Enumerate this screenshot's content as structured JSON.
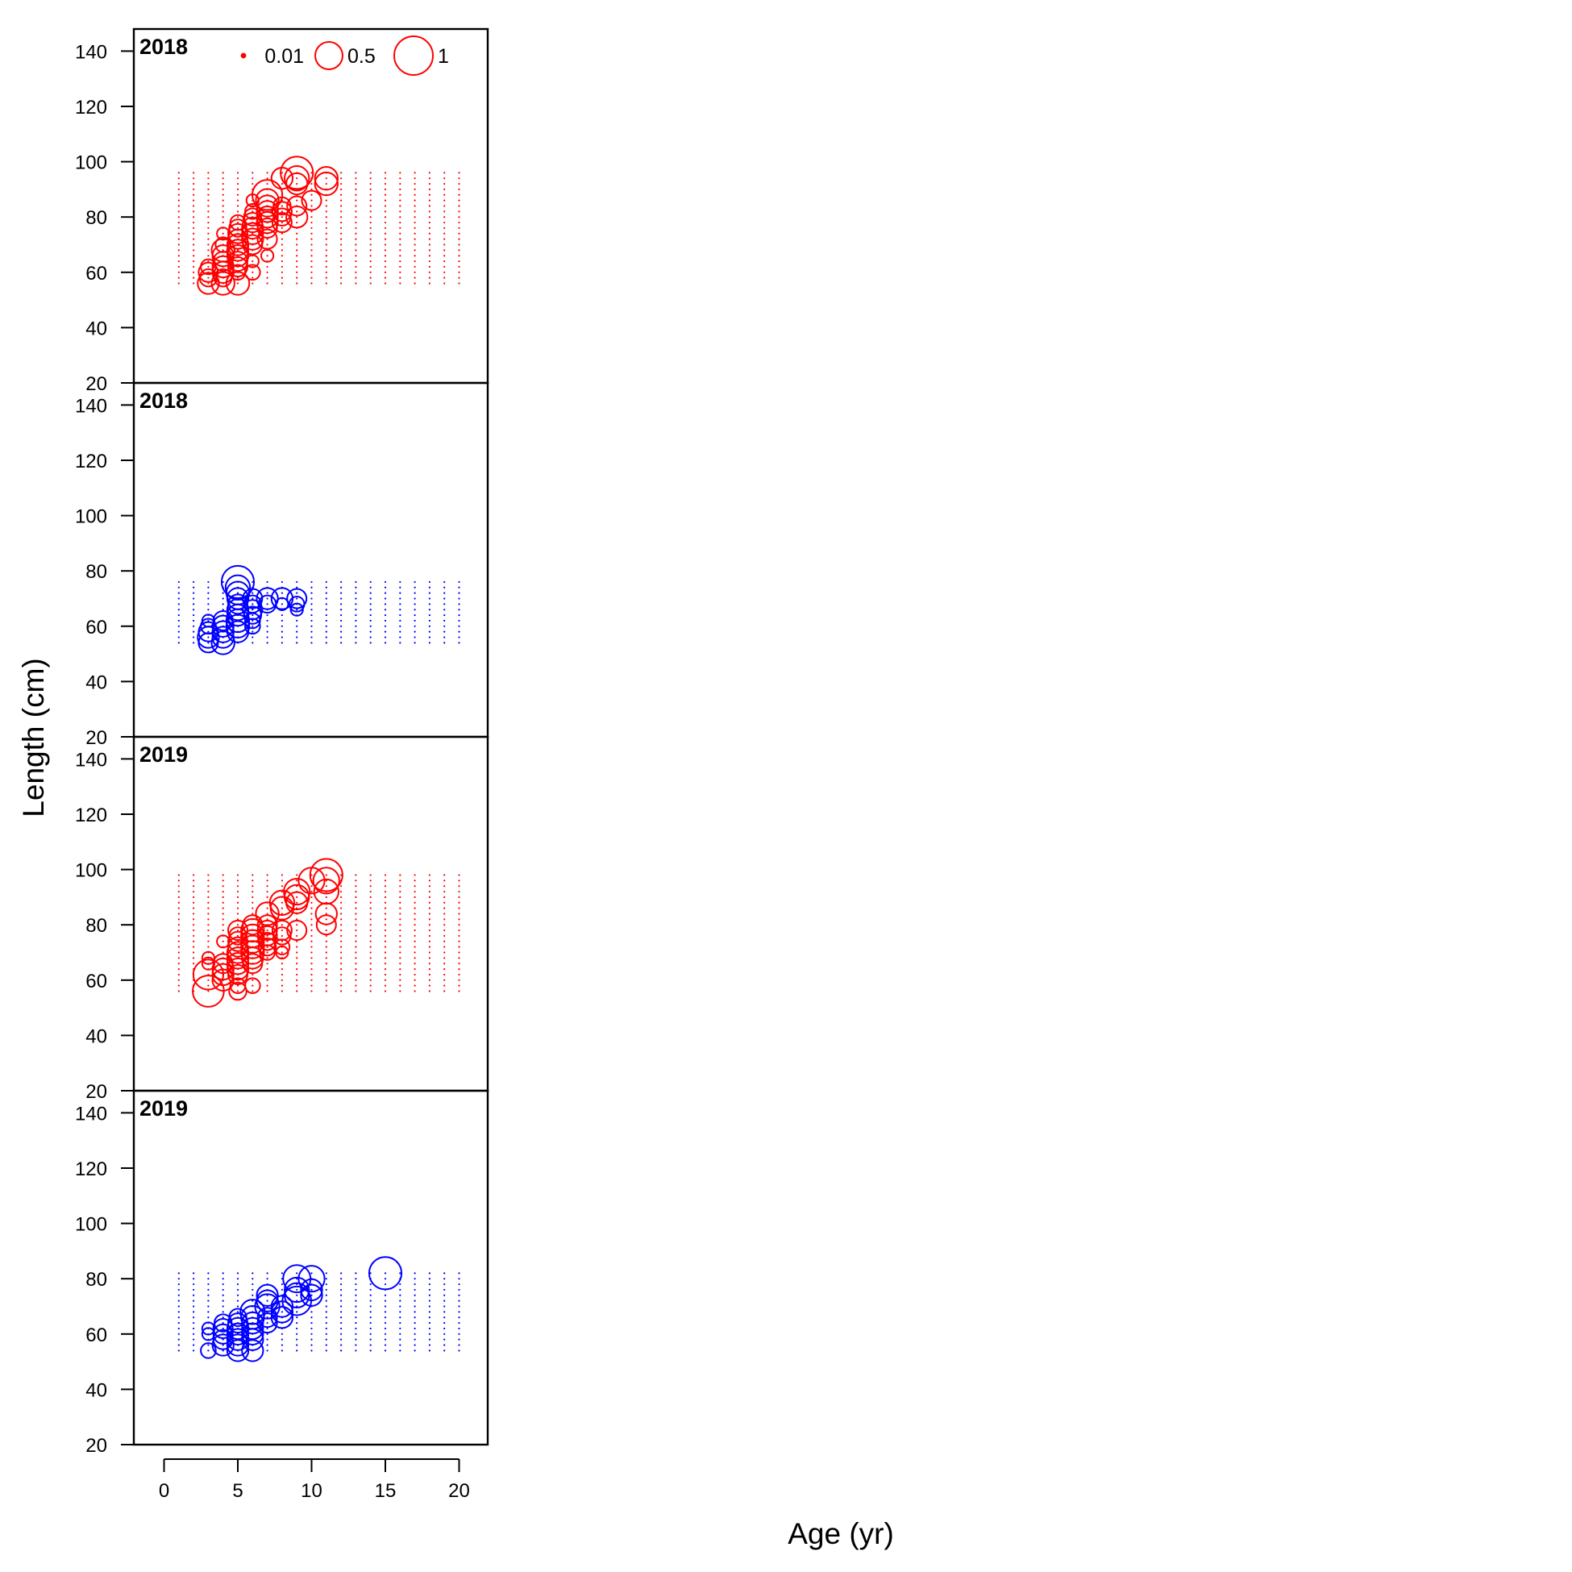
{
  "chart_data": {
    "type": "scatter",
    "subtype": "bubble",
    "xlabel": "Age (yr)",
    "ylabel": "Length (cm)",
    "xlim": [
      -2,
      22
    ],
    "ylim": [
      20,
      148
    ],
    "x_ticks": [
      0,
      5,
      10,
      15,
      20
    ],
    "y_ticks": [
      20,
      40,
      60,
      80,
      100,
      120,
      140
    ],
    "grid": false,
    "legend": {
      "placement": "top-center of first panel",
      "entries": [
        {
          "label": "0.01",
          "size": 0.01
        },
        {
          "label": "0.5",
          "size": 0.5
        },
        {
          "label": "1",
          "size": 1
        }
      ]
    },
    "colors": {
      "female": "#ff0000",
      "male": "#0000ff"
    },
    "panels": [
      {
        "label": "2018",
        "color": "#ff0000",
        "bins": {
          "age_min": 1,
          "age_max": 20,
          "len_min": 56,
          "len_max": 96,
          "len_step": 2
        },
        "points": [
          [
            3,
            56,
            0.3
          ],
          [
            3,
            58,
            0.2
          ],
          [
            3,
            60,
            0.25
          ],
          [
            3,
            62,
            0.15
          ],
          [
            4,
            56,
            0.35
          ],
          [
            4,
            58,
            0.2
          ],
          [
            4,
            60,
            0.3
          ],
          [
            4,
            62,
            0.3
          ],
          [
            4,
            64,
            0.25
          ],
          [
            4,
            66,
            0.3
          ],
          [
            4,
            68,
            0.35
          ],
          [
            4,
            70,
            0.15
          ],
          [
            4,
            74,
            0.1
          ],
          [
            5,
            56,
            0.35
          ],
          [
            5,
            60,
            0.15
          ],
          [
            5,
            62,
            0.25
          ],
          [
            5,
            64,
            0.25
          ],
          [
            5,
            66,
            0.3
          ],
          [
            5,
            68,
            0.3
          ],
          [
            5,
            70,
            0.3
          ],
          [
            5,
            72,
            0.25
          ],
          [
            5,
            74,
            0.25
          ],
          [
            5,
            76,
            0.2
          ],
          [
            5,
            78,
            0.15
          ],
          [
            6,
            60,
            0.15
          ],
          [
            6,
            64,
            0.1
          ],
          [
            6,
            70,
            0.25
          ],
          [
            6,
            72,
            0.3
          ],
          [
            6,
            74,
            0.3
          ],
          [
            6,
            76,
            0.3
          ],
          [
            6,
            78,
            0.25
          ],
          [
            6,
            80,
            0.2
          ],
          [
            6,
            82,
            0.15
          ],
          [
            6,
            86,
            0.1
          ],
          [
            7,
            66,
            0.1
          ],
          [
            7,
            72,
            0.25
          ],
          [
            7,
            76,
            0.25
          ],
          [
            7,
            78,
            0.3
          ],
          [
            7,
            80,
            0.3
          ],
          [
            7,
            82,
            0.3
          ],
          [
            7,
            84,
            0.3
          ],
          [
            7,
            86,
            0.35
          ],
          [
            7,
            88,
            0.6
          ],
          [
            8,
            78,
            0.25
          ],
          [
            8,
            80,
            0.2
          ],
          [
            8,
            82,
            0.25
          ],
          [
            8,
            84,
            0.2
          ],
          [
            8,
            94,
            0.3
          ],
          [
            9,
            80,
            0.3
          ],
          [
            9,
            84,
            0.25
          ],
          [
            9,
            92,
            0.3
          ],
          [
            9,
            94,
            0.4
          ],
          [
            9,
            96,
            0.7
          ],
          [
            10,
            86,
            0.25
          ],
          [
            11,
            92,
            0.35
          ],
          [
            11,
            94,
            0.35
          ]
        ]
      },
      {
        "label": "2018",
        "color": "#0000ff",
        "bins": {
          "age_min": 1,
          "age_max": 20,
          "len_min": 54,
          "len_max": 76,
          "len_step": 2
        },
        "points": [
          [
            3,
            54,
            0.25
          ],
          [
            3,
            56,
            0.3
          ],
          [
            3,
            58,
            0.25
          ],
          [
            3,
            60,
            0.15
          ],
          [
            3,
            62,
            0.1
          ],
          [
            4,
            54,
            0.35
          ],
          [
            4,
            56,
            0.3
          ],
          [
            4,
            58,
            0.3
          ],
          [
            4,
            60,
            0.3
          ],
          [
            4,
            62,
            0.25
          ],
          [
            5,
            58,
            0.3
          ],
          [
            5,
            60,
            0.35
          ],
          [
            5,
            62,
            0.35
          ],
          [
            5,
            64,
            0.3
          ],
          [
            5,
            66,
            0.3
          ],
          [
            5,
            68,
            0.25
          ],
          [
            5,
            70,
            0.3
          ],
          [
            5,
            72,
            0.35
          ],
          [
            5,
            74,
            0.4
          ],
          [
            5,
            76,
            0.7
          ],
          [
            6,
            60,
            0.15
          ],
          [
            6,
            62,
            0.15
          ],
          [
            6,
            64,
            0.2
          ],
          [
            6,
            66,
            0.25
          ],
          [
            6,
            68,
            0.2
          ],
          [
            6,
            70,
            0.25
          ],
          [
            7,
            68,
            0.2
          ],
          [
            7,
            70,
            0.3
          ],
          [
            8,
            68,
            0.1
          ],
          [
            8,
            70,
            0.3
          ],
          [
            9,
            66,
            0.1
          ],
          [
            9,
            68,
            0.15
          ],
          [
            9,
            70,
            0.25
          ]
        ]
      },
      {
        "label": "2019",
        "color": "#ff0000",
        "bins": {
          "age_min": 1,
          "age_max": 20,
          "len_min": 56,
          "len_max": 98,
          "len_step": 2
        },
        "points": [
          [
            3,
            56,
            0.65
          ],
          [
            3,
            62,
            0.6
          ],
          [
            3,
            66,
            0.1
          ],
          [
            3,
            68,
            0.1
          ],
          [
            4,
            60,
            0.3
          ],
          [
            4,
            62,
            0.3
          ],
          [
            4,
            64,
            0.3
          ],
          [
            4,
            66,
            0.25
          ],
          [
            4,
            74,
            0.1
          ],
          [
            5,
            56,
            0.2
          ],
          [
            5,
            58,
            0.15
          ],
          [
            5,
            62,
            0.25
          ],
          [
            5,
            64,
            0.3
          ],
          [
            5,
            66,
            0.3
          ],
          [
            5,
            68,
            0.3
          ],
          [
            5,
            70,
            0.3
          ],
          [
            5,
            72,
            0.25
          ],
          [
            5,
            74,
            0.25
          ],
          [
            5,
            76,
            0.2
          ],
          [
            5,
            78,
            0.25
          ],
          [
            6,
            58,
            0.15
          ],
          [
            6,
            66,
            0.25
          ],
          [
            6,
            68,
            0.3
          ],
          [
            6,
            70,
            0.35
          ],
          [
            6,
            72,
            0.35
          ],
          [
            6,
            74,
            0.35
          ],
          [
            6,
            76,
            0.35
          ],
          [
            6,
            78,
            0.35
          ],
          [
            6,
            80,
            0.25
          ],
          [
            7,
            70,
            0.15
          ],
          [
            7,
            72,
            0.2
          ],
          [
            7,
            74,
            0.2
          ],
          [
            7,
            76,
            0.25
          ],
          [
            7,
            78,
            0.25
          ],
          [
            7,
            80,
            0.25
          ],
          [
            7,
            84,
            0.35
          ],
          [
            8,
            70,
            0.1
          ],
          [
            8,
            72,
            0.15
          ],
          [
            8,
            76,
            0.2
          ],
          [
            8,
            78,
            0.25
          ],
          [
            8,
            86,
            0.35
          ],
          [
            8,
            88,
            0.4
          ],
          [
            9,
            78,
            0.25
          ],
          [
            9,
            88,
            0.3
          ],
          [
            9,
            90,
            0.4
          ],
          [
            9,
            92,
            0.45
          ],
          [
            10,
            96,
            0.45
          ],
          [
            11,
            80,
            0.25
          ],
          [
            11,
            84,
            0.3
          ],
          [
            11,
            92,
            0.4
          ],
          [
            11,
            96,
            0.45
          ],
          [
            11,
            98,
            0.7
          ]
        ]
      },
      {
        "label": "2019",
        "color": "#0000ff",
        "bins": {
          "age_min": 1,
          "age_max": 20,
          "len_min": 54,
          "len_max": 82,
          "len_step": 2
        },
        "points": [
          [
            3,
            54,
            0.15
          ],
          [
            3,
            60,
            0.1
          ],
          [
            3,
            62,
            0.1
          ],
          [
            4,
            56,
            0.3
          ],
          [
            4,
            58,
            0.25
          ],
          [
            4,
            60,
            0.25
          ],
          [
            4,
            62,
            0.25
          ],
          [
            4,
            64,
            0.2
          ],
          [
            5,
            54,
            0.3
          ],
          [
            5,
            56,
            0.3
          ],
          [
            5,
            58,
            0.3
          ],
          [
            5,
            60,
            0.3
          ],
          [
            5,
            62,
            0.3
          ],
          [
            5,
            64,
            0.25
          ],
          [
            5,
            66,
            0.2
          ],
          [
            6,
            54,
            0.3
          ],
          [
            6,
            58,
            0.3
          ],
          [
            6,
            60,
            0.3
          ],
          [
            6,
            62,
            0.3
          ],
          [
            6,
            64,
            0.3
          ],
          [
            6,
            66,
            0.35
          ],
          [
            6,
            68,
            0.4
          ],
          [
            7,
            64,
            0.25
          ],
          [
            7,
            66,
            0.25
          ],
          [
            7,
            70,
            0.4
          ],
          [
            7,
            72,
            0.3
          ],
          [
            7,
            74,
            0.3
          ],
          [
            8,
            66,
            0.3
          ],
          [
            8,
            68,
            0.3
          ],
          [
            8,
            70,
            0.3
          ],
          [
            9,
            72,
            0.55
          ],
          [
            9,
            74,
            0.4
          ],
          [
            9,
            76,
            0.4
          ],
          [
            9,
            80,
            0.5
          ],
          [
            10,
            74,
            0.3
          ],
          [
            10,
            76,
            0.3
          ],
          [
            10,
            80,
            0.45
          ],
          [
            15,
            82,
            0.7
          ]
        ]
      }
    ]
  }
}
